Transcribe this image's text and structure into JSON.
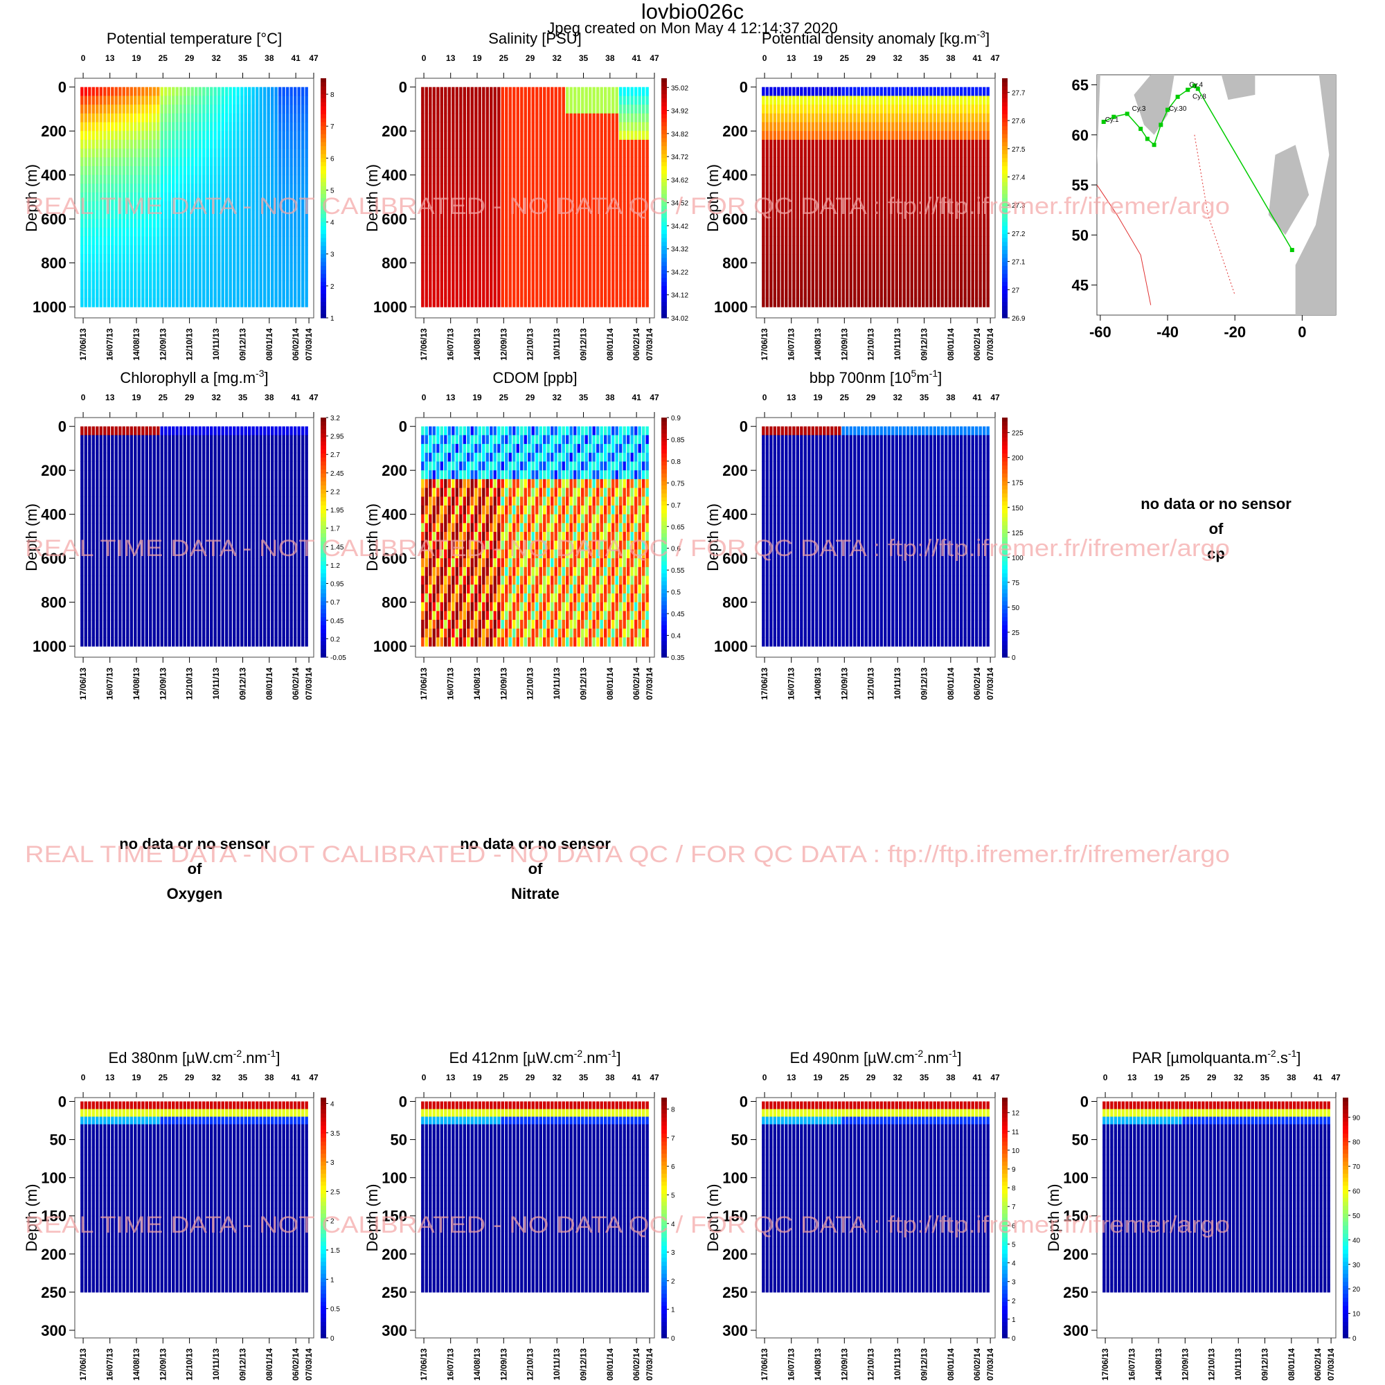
{
  "header": {
    "title": "lovbio026c",
    "subtitle": "Jpeg created on  Mon May  4 12:14:37 2020"
  },
  "watermark": "REAL TIME DATA - NOT CALIBRATED - NO DATA QC   /  FOR QC DATA : ftp://ftp.ifremer.fr/ifremer/argo",
  "shared_axes": {
    "ylabel": "Depth (m)",
    "top_ticks": [
      "0",
      "13",
      "19",
      "25",
      "29",
      "32",
      "35",
      "38",
      "41",
      "47"
    ],
    "dates": [
      "17/06/13",
      "16/07/13",
      "14/08/13",
      "12/09/13",
      "12/10/13",
      "10/11/13",
      "09/12/13",
      "08/01/14",
      "06/02/14",
      "07/03/14"
    ],
    "deep_yticks": [
      "0",
      "200",
      "400",
      "600",
      "800",
      "1000"
    ],
    "shallow_yticks": [
      "0",
      "50",
      "100",
      "150",
      "200",
      "250",
      "300"
    ]
  },
  "colors": {
    "jet": [
      "#00008f",
      "#0000ff",
      "#0080ff",
      "#00ffff",
      "#80ff80",
      "#ffff00",
      "#ff8000",
      "#ff0000",
      "#800000"
    ],
    "watermark": "#f5a5a5",
    "map_land": "#bdbdbd",
    "map_track": "#00cc00",
    "map_contour": "#e03030"
  },
  "chart_data": [
    {
      "id": "temp",
      "type": "heatmap",
      "title": "Potential temperature [°C]",
      "ylabel": "Depth (m)",
      "ylim": [
        1050,
        -40
      ],
      "colorbar": [
        "8",
        "7",
        "6",
        "5",
        "4",
        "3",
        "2",
        "1"
      ],
      "cmin": 1,
      "cmax": 8.5,
      "maxdepth": 1000
    },
    {
      "id": "sal",
      "type": "heatmap",
      "title": "Salinity [PSU]",
      "ylabel": "Depth (m)",
      "ylim": [
        1050,
        -40
      ],
      "colorbar": [
        "35.02",
        "34.92",
        "34.82",
        "34.72",
        "34.62",
        "34.52",
        "34.42",
        "34.32",
        "34.22",
        "34.12",
        "34.02"
      ],
      "cmin": 34.02,
      "cmax": 35.06,
      "maxdepth": 1000
    },
    {
      "id": "dens",
      "type": "heatmap",
      "title": "Potential density anomaly [kg.m",
      "title_sup": "-3",
      "title_end": "]",
      "ylabel": "Depth (m)",
      "ylim": [
        1050,
        -40
      ],
      "colorbar": [
        "27.7",
        "27.6",
        "27.5",
        "27.4",
        "27.3",
        "27.2",
        "27.1",
        "27",
        "26.9"
      ],
      "cmin": 26.9,
      "cmax": 27.75,
      "maxdepth": 1000
    },
    {
      "id": "chla",
      "type": "heatmap",
      "title": "Chlorophyll a [mg.m",
      "title_sup": "-3",
      "title_end": "]",
      "ylabel": "Depth (m)",
      "ylim": [
        1050,
        -40
      ],
      "colorbar": [
        "3.2",
        "2.95",
        "2.7",
        "2.45",
        "2.2",
        "1.95",
        "1.7",
        "1.45",
        "1.2",
        "0.95",
        "0.7",
        "0.45",
        "0.2",
        "-0.05"
      ],
      "cmin": -0.05,
      "cmax": 3.2,
      "maxdepth": 1000
    },
    {
      "id": "cdom",
      "type": "heatmap",
      "title": "CDOM  [ppb]",
      "ylabel": "Depth (m)",
      "ylim": [
        1050,
        -40
      ],
      "colorbar": [
        "0.9",
        "0.85",
        "0.8",
        "0.75",
        "0.7",
        "0.65",
        "0.6",
        "0.55",
        "0.5",
        "0.45",
        "0.4",
        "0.35"
      ],
      "cmin": 0.35,
      "cmax": 0.9,
      "maxdepth": 1000
    },
    {
      "id": "bbp",
      "type": "heatmap",
      "title": "bbp 700nm [10",
      "title_sup": "5",
      "title_mid": "m",
      "title_sup2": "-1",
      "title_end": "]",
      "ylabel": "Depth (m)",
      "ylim": [
        1050,
        -40
      ],
      "colorbar": [
        "225",
        "200",
        "175",
        "150",
        "125",
        "100",
        "75",
        "50",
        "25",
        "0"
      ],
      "cmin": 0,
      "cmax": 240,
      "maxdepth": 1000
    },
    {
      "id": "ed380",
      "type": "heatmap",
      "title": "Ed 380nm [µW.cm",
      "title_sup": "-2",
      "title_mid": ".nm",
      "title_sup2": "-1",
      "title_end": "]",
      "ylabel": "Depth (m)",
      "ylim": [
        310,
        -5
      ],
      "colorbar": [
        "4",
        "3.5",
        "3",
        "2.5",
        "2",
        "1.5",
        "1",
        "0.5",
        "0"
      ],
      "cmin": 0,
      "cmax": 4.1,
      "maxdepth": 250
    },
    {
      "id": "ed412",
      "type": "heatmap",
      "title": "Ed 412nm [µW.cm",
      "title_sup": "-2",
      "title_mid": ".nm",
      "title_sup2": "-1",
      "title_end": "]",
      "ylabel": "Depth (m)",
      "ylim": [
        310,
        -5
      ],
      "colorbar": [
        "8",
        "7",
        "6",
        "5",
        "4",
        "3",
        "2",
        "1",
        "0"
      ],
      "cmin": 0,
      "cmax": 8.4,
      "maxdepth": 250
    },
    {
      "id": "ed490",
      "type": "heatmap",
      "title": "Ed 490nm [µW.cm",
      "title_sup": "-2",
      "title_mid": ".nm",
      "title_sup2": "-1",
      "title_end": "]",
      "ylabel": "Depth (m)",
      "ylim": [
        310,
        -5
      ],
      "colorbar": [
        "12",
        "11",
        "10",
        "9",
        "8",
        "7",
        "6",
        "5",
        "4",
        "3",
        "2",
        "1",
        "0"
      ],
      "cmin": 0,
      "cmax": 12.8,
      "maxdepth": 250
    },
    {
      "id": "par",
      "type": "heatmap",
      "title": "PAR [µmolquanta.m",
      "title_sup": "-2",
      "title_mid": ".s",
      "title_sup2": "-1",
      "title_end": "]",
      "ylabel": "Depth (m)",
      "ylim": [
        310,
        -5
      ],
      "colorbar": [
        "90",
        "80",
        "70",
        "60",
        "50",
        "40",
        "30",
        "20",
        "10",
        "0"
      ],
      "cmin": 0,
      "cmax": 98,
      "maxdepth": 250
    },
    {
      "id": "map",
      "type": "scatter",
      "xticks": [
        "-60",
        "-40",
        "-20",
        "0"
      ],
      "yticks": [
        "65",
        "60",
        "55",
        "50",
        "45"
      ],
      "xlim": [
        -61,
        10
      ],
      "ylim": [
        42,
        66
      ],
      "labels": [
        "Cy.1",
        "Cy.3",
        "Cy.8",
        "Cy.30",
        "Cy.4"
      ],
      "track": [
        [
          -59,
          61.3
        ],
        [
          -56,
          61.8
        ],
        [
          -52,
          62.1
        ],
        [
          -48,
          60.6
        ],
        [
          -46,
          59.6
        ],
        [
          -44,
          59.0
        ],
        [
          -42,
          61.0
        ],
        [
          -40,
          62.5
        ],
        [
          -37,
          63.8
        ],
        [
          -34,
          64.5
        ],
        [
          -32,
          64.9
        ],
        [
          -31,
          64.6
        ],
        [
          -3,
          48.5
        ]
      ]
    }
  ],
  "no_data": {
    "cp": [
      "no data or no sensor",
      "of",
      "cp"
    ],
    "oxygen": [
      "no data or no sensor",
      "of",
      "Oxygen"
    ],
    "nitrate": [
      "no data or no sensor",
      "of",
      "Nitrate"
    ]
  }
}
